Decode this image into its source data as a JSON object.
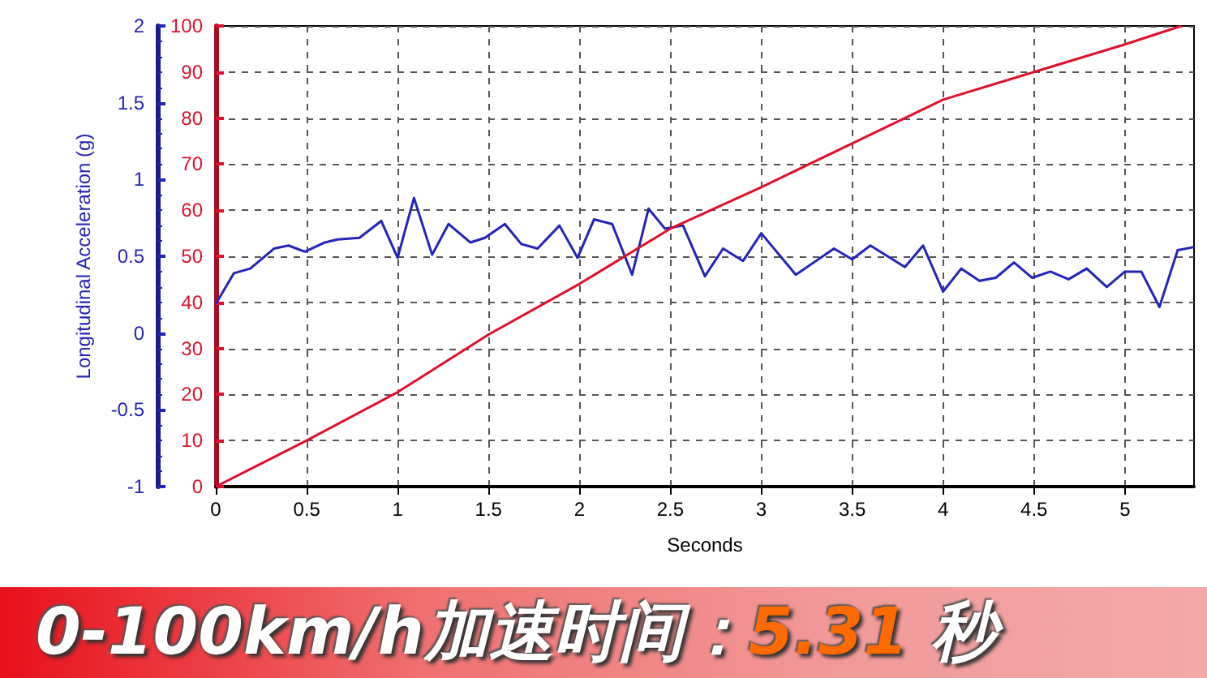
{
  "chart_data": {
    "type": "line",
    "title": "0-100km/h加速时间：5.31 秒",
    "xlabel": "Seconds",
    "ylabel": "Longitudinal Acceleration (g)",
    "xlim": [
      0,
      5.38
    ],
    "xticks": [
      0,
      0.5,
      1,
      1.5,
      2,
      2.5,
      3,
      3.5,
      4,
      4.5,
      5
    ],
    "ylim": [
      -1,
      2
    ],
    "yticks": [
      -1,
      -0.5,
      0,
      0.5,
      1,
      1.5,
      2
    ],
    "y2lim": [
      0,
      100
    ],
    "y2ticks": [
      0,
      10,
      20,
      30,
      40,
      50,
      60,
      70,
      80,
      90,
      100
    ],
    "grid": true,
    "series": [
      {
        "color": "#2424b8",
        "axis": "y",
        "x": [
          0,
          0.1,
          0.19,
          0.32,
          0.4,
          0.49,
          0.6,
          0.67,
          0.79,
          0.91,
          1.0,
          1.09,
          1.19,
          1.28,
          1.4,
          1.48,
          1.59,
          1.68,
          1.77,
          1.89,
          1.99,
          2.08,
          2.18,
          2.29,
          2.38,
          2.47,
          2.57,
          2.69,
          2.79,
          2.9,
          3.0,
          3.19,
          3.4,
          3.5,
          3.6,
          3.79,
          3.89,
          4.0,
          4.1,
          4.2,
          4.29,
          4.39,
          4.49,
          4.59,
          4.69,
          4.79,
          4.9,
          5.0,
          5.09,
          5.19,
          5.29,
          5.38
        ],
        "values": [
          0.19,
          0.39,
          0.42,
          0.55,
          0.57,
          0.53,
          0.59,
          0.61,
          0.62,
          0.73,
          0.49,
          0.88,
          0.51,
          0.71,
          0.59,
          0.62,
          0.71,
          0.58,
          0.55,
          0.7,
          0.49,
          0.74,
          0.71,
          0.38,
          0.81,
          0.68,
          0.7,
          0.37,
          0.55,
          0.47,
          0.65,
          0.38,
          0.55,
          0.48,
          0.57,
          0.43,
          0.57,
          0.27,
          0.42,
          0.34,
          0.36,
          0.46,
          0.36,
          0.4,
          0.35,
          0.42,
          0.3,
          0.4,
          0.4,
          0.17,
          0.54,
          0.56
        ]
      },
      {
        "color": "#e0102a",
        "axis": "y2",
        "x": [
          0,
          0.25,
          0.5,
          1,
          1.5,
          2,
          2.5,
          3,
          3.5,
          4,
          4.5,
          5,
          5.31
        ],
        "values": [
          0,
          5,
          10,
          20.5,
          33,
          44,
          56,
          65,
          74.5,
          84,
          90,
          96,
          100
        ]
      }
    ]
  }
}
